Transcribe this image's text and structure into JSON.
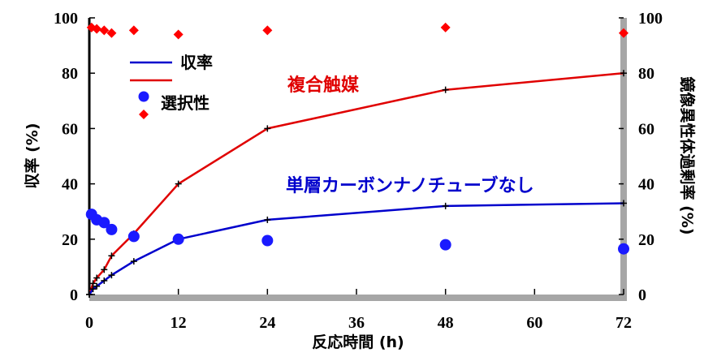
{
  "chart_data": {
    "type": "line",
    "xlabel": "反応時間 (h)",
    "ylabel_left": "収率 (%)",
    "ylabel_right": "鏡像異性体過剰率 (%)",
    "xlim": [
      0,
      72
    ],
    "ylim": [
      0,
      100
    ],
    "x_ticks": [
      "0",
      "12",
      "24",
      "36",
      "48",
      "60",
      "72"
    ],
    "y_ticks_left": [
      "0",
      "20",
      "40",
      "60",
      "80",
      "100"
    ],
    "y_ticks_right": [
      "0",
      "20",
      "40",
      "60",
      "80",
      "100"
    ],
    "grid": false,
    "legend": {
      "placement": "top-left",
      "entries": [
        {
          "label": "収率",
          "color": "#0000cc",
          "kind": "line"
        },
        {
          "label": "",
          "color": "#e00000",
          "kind": "line"
        },
        {
          "label": "",
          "color": "#1a1aff",
          "kind": "circle"
        },
        {
          "label": "選択性",
          "color": "#ff0000",
          "kind": "diamond"
        }
      ]
    },
    "annotations": [
      {
        "text": "複合触媒",
        "color": "#e00000"
      },
      {
        "text": "単層カーボンナノチューブなし",
        "color": "#0000cc"
      }
    ],
    "series": [
      {
        "kind": "curve",
        "color": "#e00000",
        "x": [
          0,
          0.5,
          1,
          2,
          3,
          6,
          12,
          24,
          48,
          72
        ],
        "y": [
          0,
          4,
          6,
          9,
          14,
          22,
          40,
          60,
          74,
          80
        ]
      },
      {
        "kind": "curve",
        "color": "#0000cc",
        "x": [
          0,
          0.5,
          1,
          2,
          3,
          6,
          12,
          24,
          48,
          72
        ],
        "y": [
          0,
          2,
          3,
          5,
          7,
          12,
          20,
          27,
          32,
          33
        ]
      },
      {
        "kind": "circles",
        "color": "#1a1aff",
        "x": [
          0.3,
          1,
          2,
          3,
          6,
          12,
          24,
          48,
          72
        ],
        "y": [
          29,
          27,
          26,
          23.5,
          21,
          20,
          19.5,
          18,
          16.5
        ]
      },
      {
        "kind": "diamonds",
        "color": "#ff0000",
        "x": [
          0.3,
          1,
          2,
          3,
          6,
          12,
          24,
          48,
          72
        ],
        "y": [
          96.5,
          96,
          95.5,
          94.5,
          95.5,
          94,
          95.5,
          96.5,
          94.5
        ]
      }
    ]
  }
}
